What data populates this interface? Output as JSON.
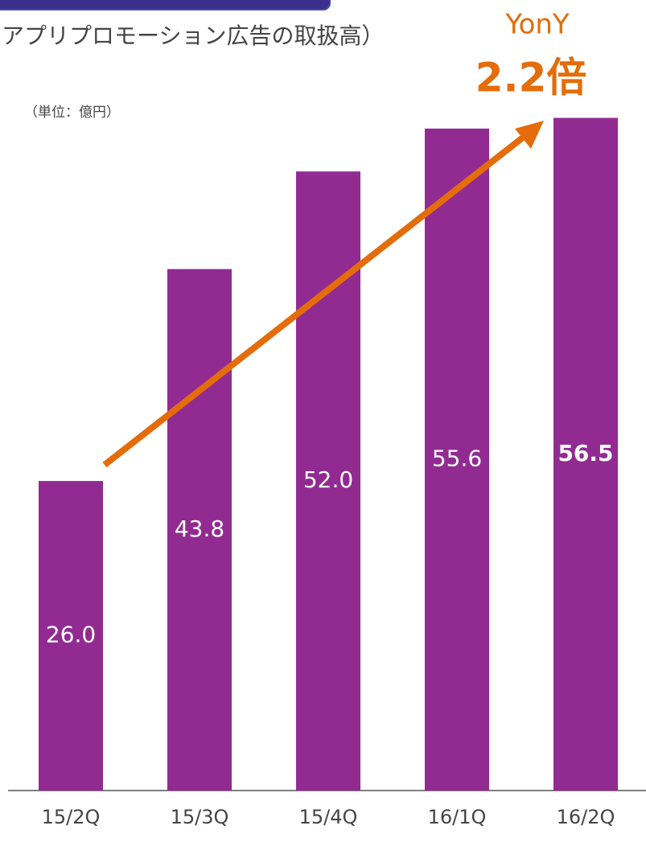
{
  "chart_data": {
    "type": "bar",
    "subtitle": "アプリプロモーション広告の取扱高）",
    "unit_label": "（単位：億円）",
    "annotations": [
      "YonY",
      "2.2倍"
    ],
    "categories": [
      "15/2Q",
      "15/3Q",
      "15/4Q",
      "16/1Q",
      "16/2Q"
    ],
    "values": [
      26.0,
      43.8,
      52.0,
      55.6,
      56.5
    ],
    "value_labels": [
      "26.0",
      "43.8",
      "52.0",
      "55.6",
      "56.5"
    ],
    "color": "#922b91",
    "annotation_color": "#e46c0a",
    "ylim": [
      0,
      66.4
    ]
  }
}
